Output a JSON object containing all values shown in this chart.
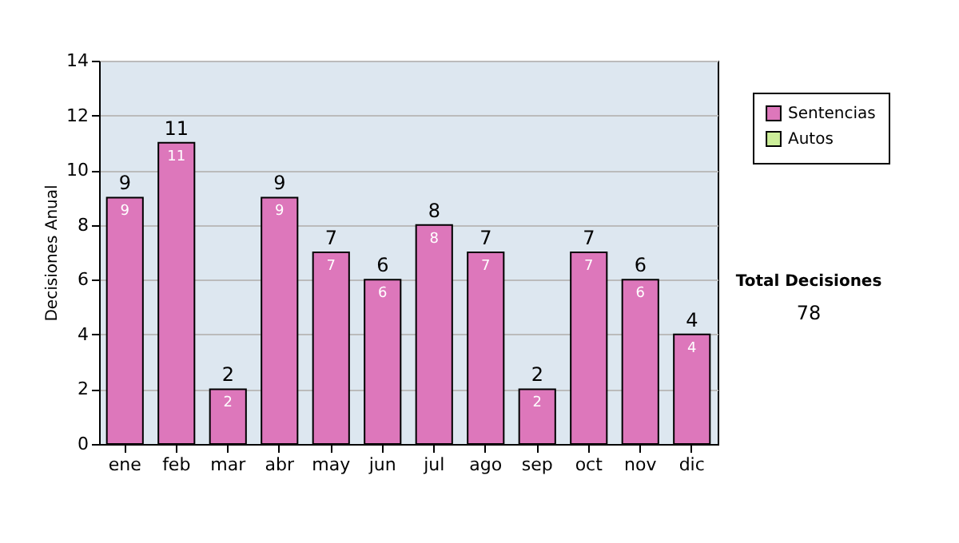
{
  "chart_data": {
    "type": "bar",
    "stacked": true,
    "ylabel": "Decisiones Anual",
    "categories": [
      "ene",
      "feb",
      "mar",
      "abr",
      "may",
      "jun",
      "jul",
      "ago",
      "sep",
      "oct",
      "nov",
      "dic"
    ],
    "series": [
      {
        "name": "Sentencias",
        "color": "#dd77bb",
        "values": [
          9,
          11,
          2,
          9,
          7,
          6,
          8,
          7,
          2,
          7,
          6,
          4
        ],
        "value_labels": [
          "9",
          "11",
          "2",
          "9",
          "7",
          "6",
          "8",
          "7",
          "2",
          "7",
          "6",
          "4"
        ]
      },
      {
        "name": "Autos",
        "color": "#ccee99",
        "values": [
          0,
          0,
          0,
          0,
          0,
          0,
          0,
          0,
          0,
          0,
          0,
          0
        ]
      }
    ],
    "totals": [
      "9",
      "11",
      "2",
      "9",
      "7",
      "6",
      "8",
      "7",
      "2",
      "7",
      "6",
      "4"
    ],
    "ylim": [
      0,
      14
    ],
    "yticks": [
      0,
      2,
      4,
      6,
      8,
      10,
      12,
      14
    ],
    "grid": "y",
    "legend": "right",
    "annotations": [
      "Total Decisiones",
      "78"
    ]
  }
}
